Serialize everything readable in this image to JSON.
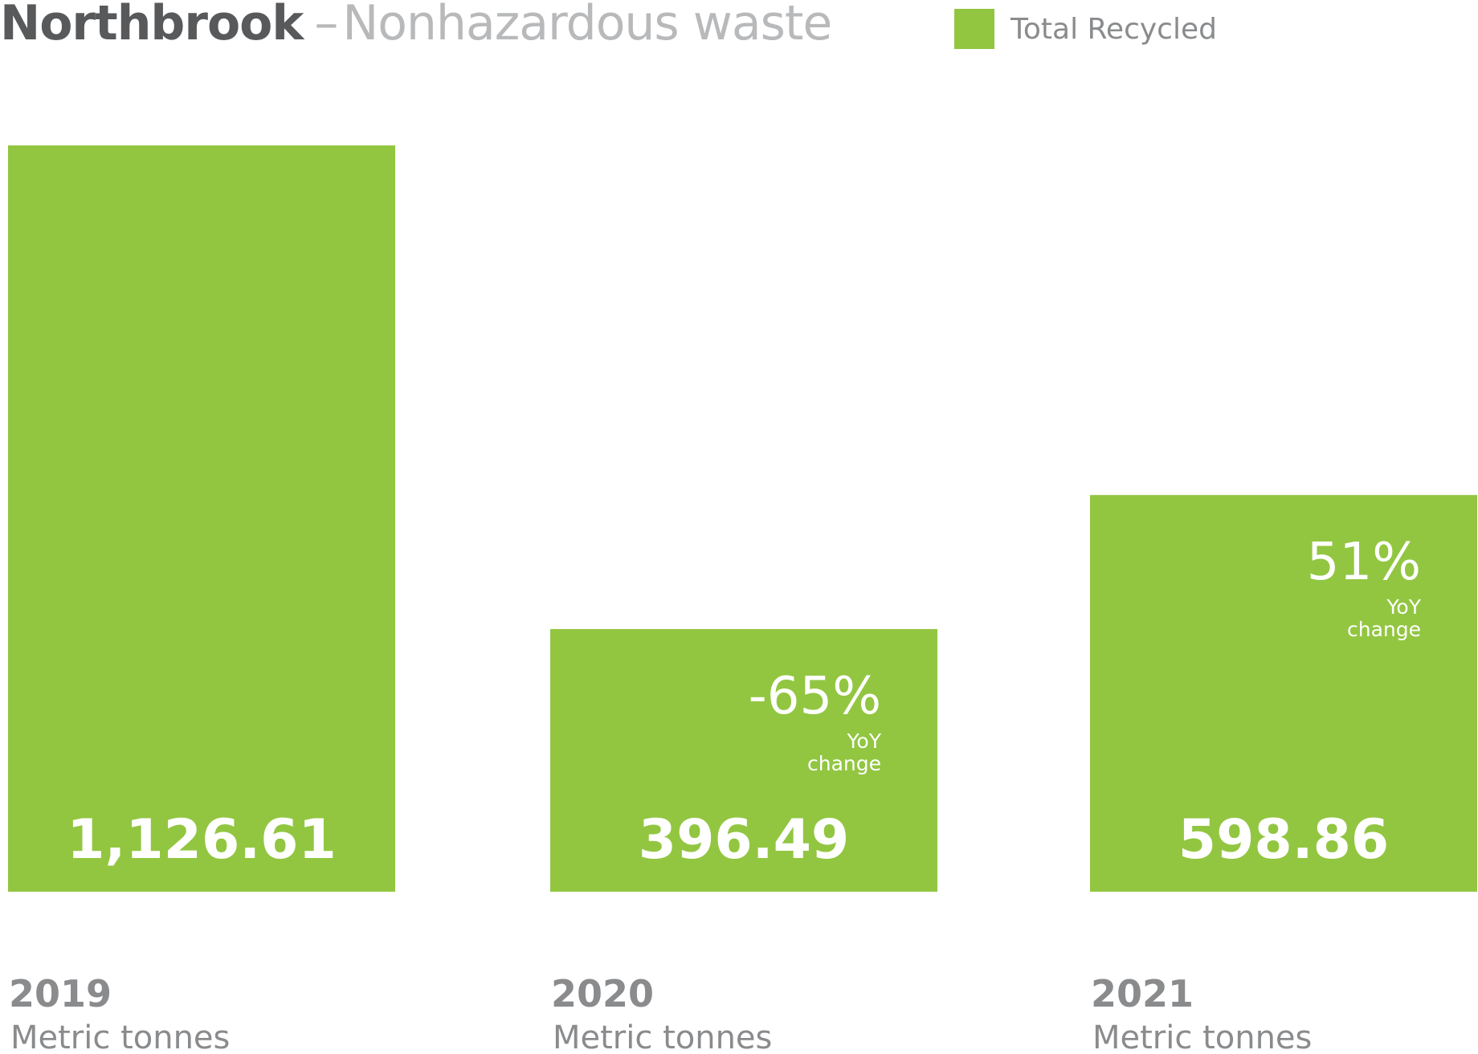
{
  "title": {
    "main": "Northbrook",
    "dash": "–",
    "sub": "Nonhazardous waste"
  },
  "legend": {
    "label": "Total Recycled",
    "color": "#92c641"
  },
  "chart_data": {
    "type": "bar",
    "categories": [
      "2019",
      "2020",
      "2021"
    ],
    "series": [
      {
        "name": "Total Recycled",
        "values": [
          1126.61,
          396.49,
          598.86
        ]
      }
    ],
    "value_labels": [
      "1,126.61",
      "396.49",
      "598.86"
    ],
    "yoy_changes": [
      null,
      "-65%",
      "51%"
    ],
    "yoy_label_line1": "YoY",
    "yoy_label_line2": "change",
    "unit": "Metric tonnes",
    "bar_color": "#92c641",
    "ylim": [
      0,
      1126.61
    ]
  }
}
